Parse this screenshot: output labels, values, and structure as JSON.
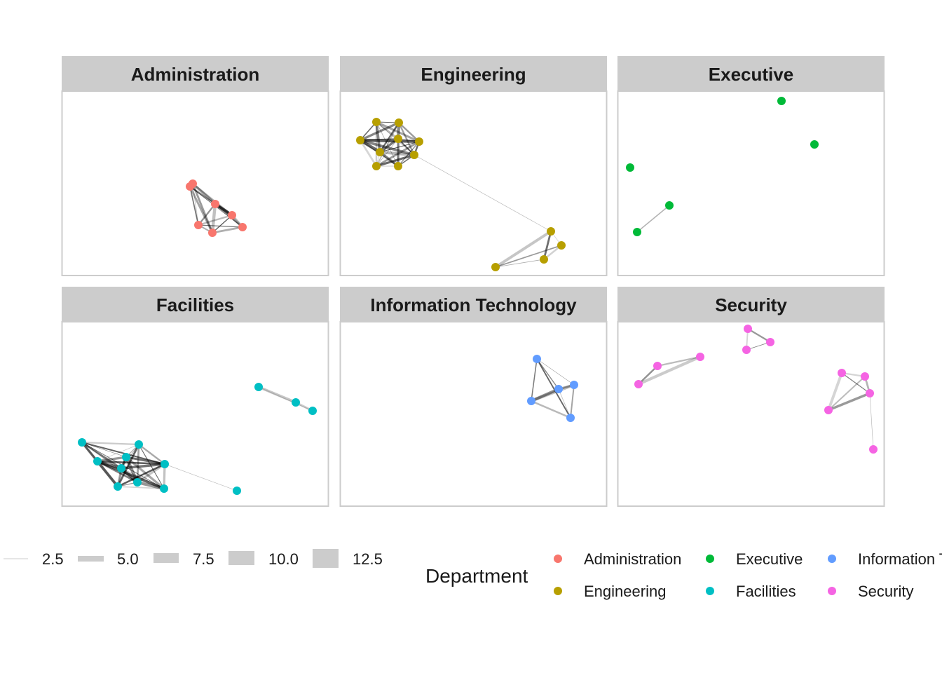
{
  "chart_data": {
    "type": "network",
    "facet_by": "Department",
    "panels": [
      {
        "title": "Administration",
        "color": "#F8766D",
        "nodes": 7
      },
      {
        "title": "Engineering",
        "color": "#B79F00",
        "nodes": 13
      },
      {
        "title": "Executive",
        "color": "#00BA38",
        "nodes": 5
      },
      {
        "title": "Facilities",
        "color": "#00BFC4",
        "nodes": 13
      },
      {
        "title": "Information Technology",
        "color": "#619CFF",
        "nodes": 5
      },
      {
        "title": "Security",
        "color": "#F564E3",
        "nodes": 11
      }
    ],
    "edge_width_legend": {
      "title": "",
      "values": [
        "2.5",
        "5.0",
        "7.5",
        "10.0",
        "12.5"
      ]
    },
    "color_legend": {
      "title": "Department",
      "entries": [
        {
          "label": "Administration",
          "color": "#F8766D"
        },
        {
          "label": "Engineering",
          "color": "#B79F00"
        },
        {
          "label": "Executive",
          "color": "#00BA38"
        },
        {
          "label": "Facilities",
          "color": "#00BFC4"
        },
        {
          "label": "Information Technology",
          "color": "#619CFF"
        },
        {
          "label": "Security",
          "color": "#F564E3"
        }
      ]
    }
  }
}
